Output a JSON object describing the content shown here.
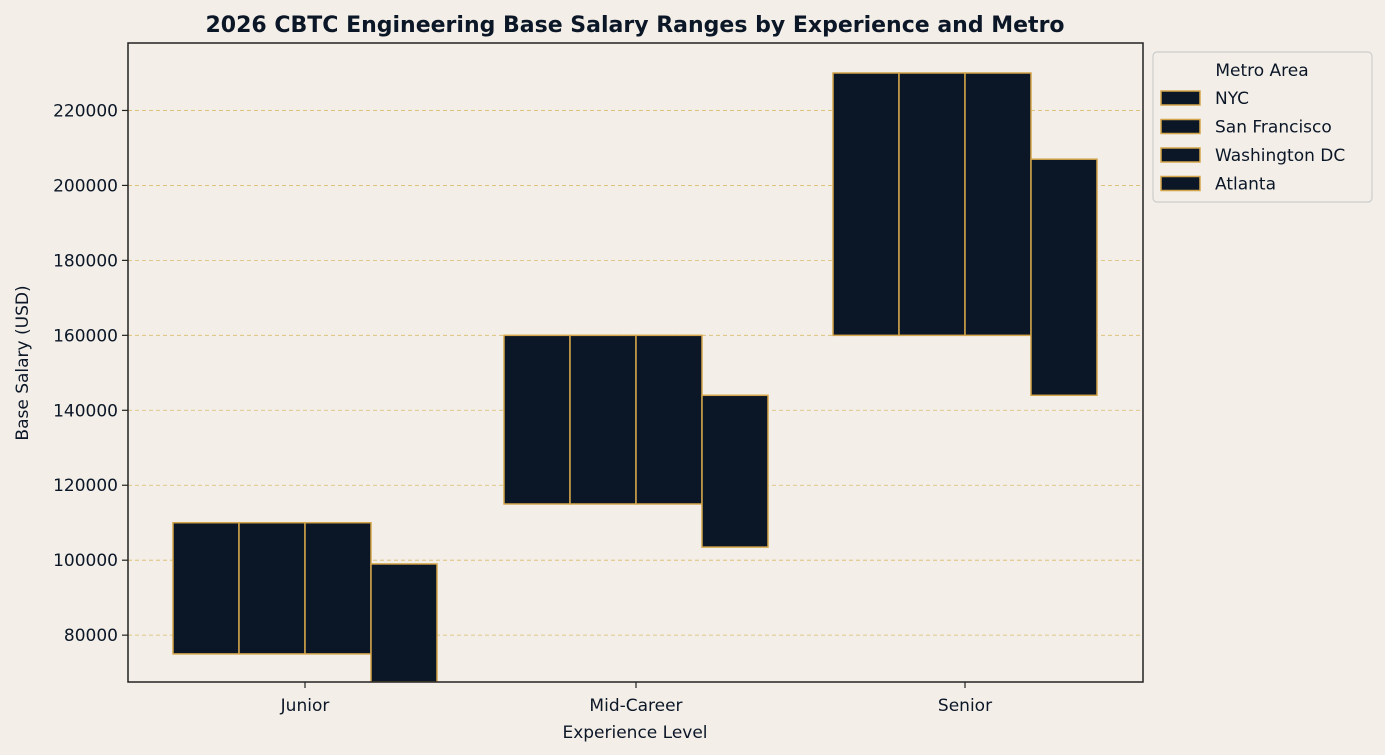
{
  "colors": {
    "background": "#f3efe8",
    "bar_fill": "#0b1627",
    "bar_edge": "#d4a54a",
    "grid": "#d9bb6a",
    "text": "#0b1627",
    "legend_bg": "#f3efe8",
    "legend_border": "#cccccc"
  },
  "chart_data": {
    "type": "bar",
    "title": "2026 CBTC Engineering Base Salary Ranges by Experience and Metro",
    "xlabel": "Experience Level",
    "ylabel": "Base Salary (USD)",
    "categories": [
      "Junior",
      "Mid-Career",
      "Senior"
    ],
    "ylim": [
      67500,
      238000
    ],
    "yticks": [
      80000,
      100000,
      120000,
      140000,
      160000,
      180000,
      200000,
      220000
    ],
    "grid": true,
    "legend": {
      "title": "Metro Area",
      "placement": "upper right, outside plot"
    },
    "series": [
      {
        "name": "NYC",
        "ranges": [
          [
            75000,
            110000
          ],
          [
            115000,
            160000
          ],
          [
            160000,
            230000
          ]
        ]
      },
      {
        "name": "San Francisco",
        "ranges": [
          [
            75000,
            110000
          ],
          [
            115000,
            160000
          ],
          [
            160000,
            230000
          ]
        ]
      },
      {
        "name": "Washington DC",
        "ranges": [
          [
            75000,
            110000
          ],
          [
            115000,
            160000
          ],
          [
            160000,
            230000
          ]
        ]
      },
      {
        "name": "Atlanta",
        "ranges": [
          [
            67500,
            99000
          ],
          [
            103500,
            144000
          ],
          [
            144000,
            207000
          ]
        ]
      }
    ]
  }
}
